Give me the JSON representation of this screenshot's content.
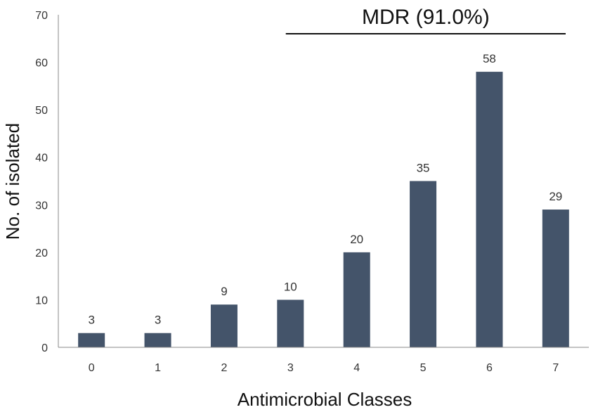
{
  "chart_data": {
    "type": "bar",
    "categories": [
      "0",
      "1",
      "2",
      "3",
      "4",
      "5",
      "6",
      "7"
    ],
    "values": [
      3,
      3,
      9,
      10,
      20,
      35,
      58,
      29
    ],
    "data_labels": [
      "3",
      "3",
      "9",
      "10",
      "20",
      "35",
      "58",
      "29"
    ],
    "xlabel": "Antimicrobial Classes",
    "ylabel": "No. of isolated",
    "ylim": [
      0,
      70
    ],
    "yticks": [
      0,
      10,
      20,
      30,
      40,
      50,
      60,
      70
    ],
    "grid": false,
    "legend": "none",
    "bar_color": "#44546a",
    "annotation": {
      "text": "MDR (91.0%)",
      "span_categories": [
        "3",
        "7"
      ]
    }
  }
}
